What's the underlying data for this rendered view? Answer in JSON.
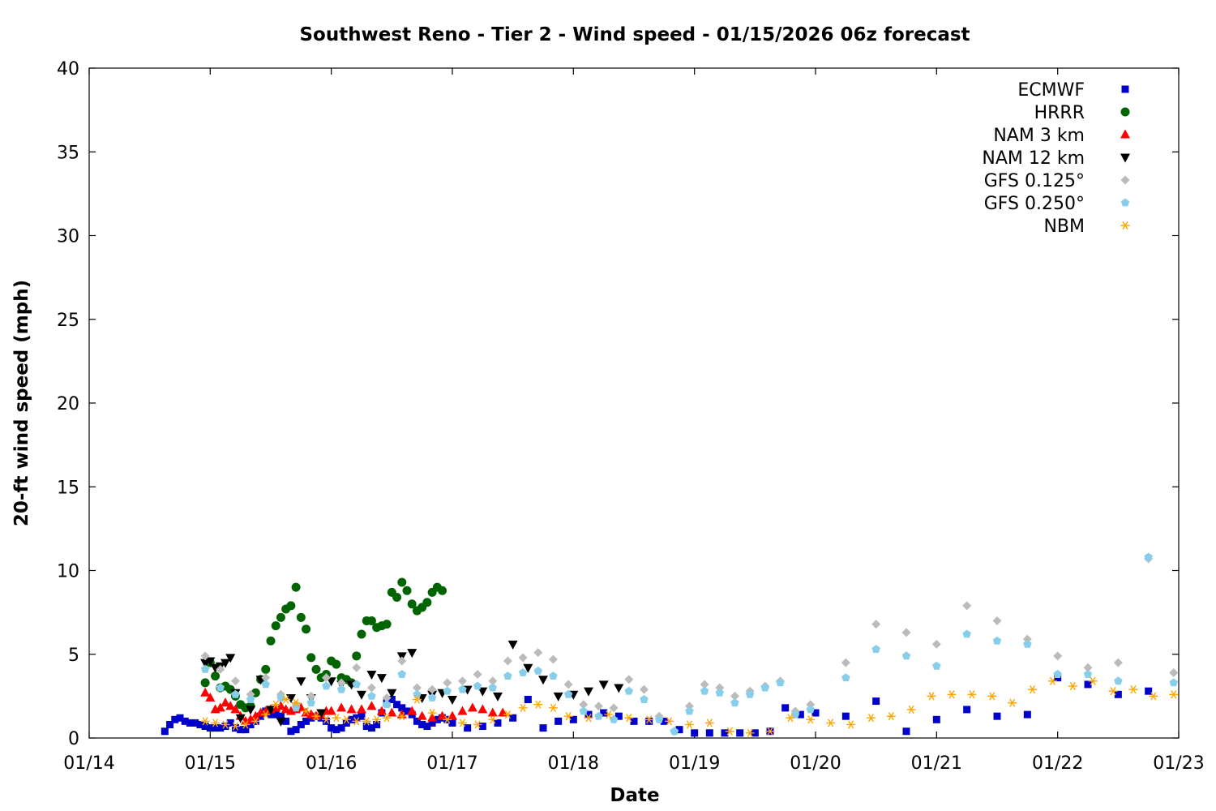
{
  "chart_data": {
    "type": "scatter",
    "title": "Southwest Reno - Tier 2 - Wind speed - 01/15/2026 06z forecast",
    "xlabel": "Date",
    "ylabel": "20-ft wind speed (mph)",
    "xlim": [
      "2026-01-14T00:00",
      "2026-01-23T00:00"
    ],
    "ylim": [
      0,
      40
    ],
    "x_ticks": [
      "01/14",
      "01/15",
      "01/16",
      "01/17",
      "01/18",
      "01/19",
      "01/20",
      "01/21",
      "01/22",
      "01/23"
    ],
    "y_ticks": [
      0,
      5,
      10,
      15,
      20,
      25,
      30,
      35,
      40
    ],
    "grid": false,
    "legend_position": "top-right",
    "series": [
      {
        "name": "ECMWF",
        "color": "#0000cc",
        "marker": "square",
        "x": [
          "2026-01-14T15:00",
          "2026-01-14T16:00",
          "2026-01-14T17:00",
          "2026-01-14T18:00",
          "2026-01-14T19:00",
          "2026-01-14T20:00",
          "2026-01-14T21:00",
          "2026-01-14T22:00",
          "2026-01-14T23:00",
          "2026-01-15T00:00",
          "2026-01-15T01:00",
          "2026-01-15T02:00",
          "2026-01-15T03:00",
          "2026-01-15T04:00",
          "2026-01-15T05:00",
          "2026-01-15T06:00",
          "2026-01-15T07:00",
          "2026-01-15T08:00",
          "2026-01-15T09:00",
          "2026-01-15T10:00",
          "2026-01-15T11:00",
          "2026-01-15T12:00",
          "2026-01-15T13:00",
          "2026-01-15T14:00",
          "2026-01-15T15:00",
          "2026-01-15T16:00",
          "2026-01-15T17:00",
          "2026-01-15T18:00",
          "2026-01-15T19:00",
          "2026-01-15T20:00",
          "2026-01-15T21:00",
          "2026-01-15T22:00",
          "2026-01-15T23:00",
          "2026-01-16T00:00",
          "2026-01-16T01:00",
          "2026-01-16T02:00",
          "2026-01-16T03:00",
          "2026-01-16T04:00",
          "2026-01-16T05:00",
          "2026-01-16T06:00",
          "2026-01-16T07:00",
          "2026-01-16T08:00",
          "2026-01-16T09:00",
          "2026-01-16T10:00",
          "2026-01-16T11:00",
          "2026-01-16T12:00",
          "2026-01-16T13:00",
          "2026-01-16T14:00",
          "2026-01-16T15:00",
          "2026-01-16T16:00",
          "2026-01-16T17:00",
          "2026-01-16T18:00",
          "2026-01-16T19:00",
          "2026-01-16T20:00",
          "2026-01-16T21:00",
          "2026-01-16T22:00",
          "2026-01-16T23:00",
          "2026-01-17T00:00",
          "2026-01-17T03:00",
          "2026-01-17T06:00",
          "2026-01-17T09:00",
          "2026-01-17T12:00",
          "2026-01-17T15:00",
          "2026-01-17T18:00",
          "2026-01-17T21:00",
          "2026-01-18T00:00",
          "2026-01-18T03:00",
          "2026-01-18T06:00",
          "2026-01-18T09:00",
          "2026-01-18T12:00",
          "2026-01-18T15:00",
          "2026-01-18T18:00",
          "2026-01-18T21:00",
          "2026-01-19T00:00",
          "2026-01-19T03:00",
          "2026-01-19T06:00",
          "2026-01-19T09:00",
          "2026-01-19T12:00",
          "2026-01-19T15:00",
          "2026-01-19T18:00",
          "2026-01-19T21:00",
          "2026-01-20T00:00",
          "2026-01-20T06:00",
          "2026-01-20T12:00",
          "2026-01-20T18:00",
          "2026-01-21T00:00",
          "2026-01-21T06:00",
          "2026-01-21T12:00",
          "2026-01-21T18:00",
          "2026-01-22T00:00",
          "2026-01-22T06:00",
          "2026-01-22T12:00",
          "2026-01-22T18:00"
        ],
        "y": [
          0.4,
          0.8,
          1.1,
          1.2,
          1.0,
          0.9,
          0.9,
          0.8,
          0.7,
          0.6,
          0.6,
          0.6,
          0.7,
          0.9,
          0.6,
          0.5,
          0.5,
          0.8,
          1.0,
          1.3,
          1.6,
          1.4,
          1.4,
          1.3,
          1.0,
          0.4,
          0.5,
          0.8,
          1.0,
          1.2,
          1.3,
          1.2,
          1.0,
          0.6,
          0.5,
          0.6,
          0.9,
          1.1,
          1.2,
          1.3,
          0.7,
          0.6,
          0.8,
          1.5,
          2.1,
          2.3,
          2.0,
          1.8,
          1.6,
          1.4,
          1.0,
          0.8,
          0.7,
          0.9,
          1.1,
          1.2,
          1.1,
          0.9,
          0.6,
          0.7,
          0.9,
          1.2,
          2.3,
          0.6,
          1.0,
          1.1,
          1.4,
          1.5,
          1.3,
          1.0,
          1.0,
          1.0,
          0.5,
          0.3,
          0.3,
          0.3,
          0.3,
          0.3,
          0.4,
          1.8,
          1.4,
          1.5,
          1.3,
          2.2,
          0.4,
          1.1,
          1.7,
          1.3,
          1.4,
          3.6,
          3.2,
          2.6,
          2.8
        ]
      },
      {
        "name": "HRRR",
        "color": "#006400",
        "marker": "circle",
        "x": [
          "2026-01-14T23:00",
          "2026-01-15T00:00",
          "2026-01-15T01:00",
          "2026-01-15T02:00",
          "2026-01-15T03:00",
          "2026-01-15T04:00",
          "2026-01-15T05:00",
          "2026-01-15T06:00",
          "2026-01-15T07:00",
          "2026-01-15T08:00",
          "2026-01-15T09:00",
          "2026-01-15T10:00",
          "2026-01-15T11:00",
          "2026-01-15T12:00",
          "2026-01-15T13:00",
          "2026-01-15T14:00",
          "2026-01-15T15:00",
          "2026-01-15T16:00",
          "2026-01-15T17:00",
          "2026-01-15T18:00",
          "2026-01-15T19:00",
          "2026-01-15T20:00",
          "2026-01-15T21:00",
          "2026-01-15T22:00",
          "2026-01-15T23:00",
          "2026-01-16T00:00",
          "2026-01-16T01:00",
          "2026-01-16T02:00",
          "2026-01-16T03:00",
          "2026-01-16T04:00",
          "2026-01-16T05:00",
          "2026-01-16T06:00",
          "2026-01-16T07:00",
          "2026-01-16T08:00",
          "2026-01-16T09:00",
          "2026-01-16T10:00",
          "2026-01-16T11:00",
          "2026-01-16T12:00",
          "2026-01-16T13:00",
          "2026-01-16T14:00",
          "2026-01-16T15:00",
          "2026-01-16T16:00",
          "2026-01-16T17:00",
          "2026-01-16T18:00",
          "2026-01-16T19:00",
          "2026-01-16T20:00",
          "2026-01-16T21:00",
          "2026-01-16T22:00"
        ],
        "y": [
          3.3,
          4.5,
          3.7,
          3.0,
          3.1,
          2.9,
          2.5,
          2.0,
          1.8,
          1.9,
          2.7,
          3.5,
          4.1,
          5.8,
          6.7,
          7.2,
          7.7,
          7.9,
          9.0,
          7.2,
          6.5,
          4.8,
          4.1,
          3.6,
          3.8,
          4.6,
          4.4,
          3.6,
          3.5,
          3.3,
          4.9,
          6.2,
          7.0,
          7.0,
          6.6,
          6.7,
          6.8,
          8.7,
          8.4,
          9.3,
          8.8,
          8.0,
          7.6,
          7.8,
          8.1,
          8.7,
          9.0,
          8.8
        ]
      },
      {
        "name": "NAM 3 km",
        "color": "#ff0000",
        "marker": "triangle-up",
        "x": [
          "2026-01-14T23:00",
          "2026-01-15T00:00",
          "2026-01-15T01:00",
          "2026-01-15T02:00",
          "2026-01-15T03:00",
          "2026-01-15T04:00",
          "2026-01-15T05:00",
          "2026-01-15T06:00",
          "2026-01-15T07:00",
          "2026-01-15T08:00",
          "2026-01-15T09:00",
          "2026-01-15T10:00",
          "2026-01-15T11:00",
          "2026-01-15T12:00",
          "2026-01-15T13:00",
          "2026-01-15T14:00",
          "2026-01-15T15:00",
          "2026-01-15T16:00",
          "2026-01-15T17:00",
          "2026-01-15T18:00",
          "2026-01-15T19:00",
          "2026-01-15T20:00",
          "2026-01-15T21:00",
          "2026-01-15T22:00",
          "2026-01-15T23:00",
          "2026-01-16T00:00",
          "2026-01-16T02:00",
          "2026-01-16T04:00",
          "2026-01-16T06:00",
          "2026-01-16T08:00",
          "2026-01-16T10:00",
          "2026-01-16T12:00",
          "2026-01-16T14:00",
          "2026-01-16T16:00",
          "2026-01-16T18:00",
          "2026-01-16T20:00",
          "2026-01-16T22:00",
          "2026-01-17T00:00",
          "2026-01-17T02:00",
          "2026-01-17T04:00",
          "2026-01-17T06:00",
          "2026-01-17T08:00",
          "2026-01-17T10:00"
        ],
        "y": [
          2.7,
          2.4,
          1.7,
          1.8,
          2.1,
          1.9,
          1.7,
          1.3,
          1.0,
          1.1,
          1.3,
          1.5,
          1.6,
          1.7,
          1.8,
          1.9,
          1.7,
          1.6,
          1.7,
          1.8,
          1.5,
          1.4,
          1.3,
          1.4,
          1.6,
          1.6,
          1.8,
          1.7,
          1.7,
          1.9,
          1.6,
          1.5,
          1.4,
          1.6,
          1.3,
          1.2,
          1.3,
          1.3,
          1.6,
          1.8,
          1.7,
          1.5,
          1.5
        ]
      },
      {
        "name": "NAM 12 km",
        "color": "#000000",
        "marker": "triangle-down",
        "x": [
          "2026-01-14T23:00",
          "2026-01-15T00:00",
          "2026-01-15T01:00",
          "2026-01-15T02:00",
          "2026-01-15T03:00",
          "2026-01-15T04:00",
          "2026-01-15T05:00",
          "2026-01-15T06:00",
          "2026-01-15T08:00",
          "2026-01-15T10:00",
          "2026-01-15T12:00",
          "2026-01-15T14:00",
          "2026-01-15T16:00",
          "2026-01-15T18:00",
          "2026-01-15T20:00",
          "2026-01-15T22:00",
          "2026-01-16T00:00",
          "2026-01-16T02:00",
          "2026-01-16T04:00",
          "2026-01-16T06:00",
          "2026-01-16T08:00",
          "2026-01-16T10:00",
          "2026-01-16T12:00",
          "2026-01-16T14:00",
          "2026-01-16T16:00",
          "2026-01-16T18:00",
          "2026-01-16T20:00",
          "2026-01-16T22:00",
          "2026-01-17T00:00",
          "2026-01-17T03:00",
          "2026-01-17T06:00",
          "2026-01-17T09:00",
          "2026-01-17T12:00",
          "2026-01-17T15:00",
          "2026-01-17T18:00",
          "2026-01-17T21:00",
          "2026-01-18T00:00",
          "2026-01-18T03:00",
          "2026-01-18T06:00",
          "2026-01-18T09:00"
        ],
        "y": [
          4.5,
          4.6,
          4.2,
          4.3,
          4.5,
          4.8,
          2.7,
          1.2,
          1.7,
          3.5,
          1.7,
          1.0,
          2.4,
          3.4,
          2.4,
          1.5,
          3.4,
          3.2,
          3.2,
          2.6,
          3.8,
          3.6,
          2.7,
          4.9,
          5.1,
          2.4,
          2.6,
          2.7,
          2.3,
          2.9,
          2.8,
          2.5,
          5.6,
          4.2,
          3.5,
          2.5,
          2.6,
          2.8,
          3.2,
          3.0
        ]
      },
      {
        "name": "GFS 0.125°",
        "color": "#bbbbbb",
        "marker": "diamond",
        "x": [
          "2026-01-14T23:00",
          "2026-01-15T02:00",
          "2026-01-15T05:00",
          "2026-01-15T08:00",
          "2026-01-15T11:00",
          "2026-01-15T14:00",
          "2026-01-15T17:00",
          "2026-01-15T20:00",
          "2026-01-15T23:00",
          "2026-01-16T02:00",
          "2026-01-16T05:00",
          "2026-01-16T08:00",
          "2026-01-16T11:00",
          "2026-01-16T14:00",
          "2026-01-16T17:00",
          "2026-01-16T20:00",
          "2026-01-16T23:00",
          "2026-01-17T02:00",
          "2026-01-17T05:00",
          "2026-01-17T08:00",
          "2026-01-17T11:00",
          "2026-01-17T14:00",
          "2026-01-17T17:00",
          "2026-01-17T20:00",
          "2026-01-17T23:00",
          "2026-01-18T02:00",
          "2026-01-18T05:00",
          "2026-01-18T08:00",
          "2026-01-18T11:00",
          "2026-01-18T14:00",
          "2026-01-18T17:00",
          "2026-01-18T20:00",
          "2026-01-18T23:00",
          "2026-01-19T02:00",
          "2026-01-19T05:00",
          "2026-01-19T08:00",
          "2026-01-19T11:00",
          "2026-01-19T14:00",
          "2026-01-19T17:00",
          "2026-01-19T20:00",
          "2026-01-19T23:00",
          "2026-01-20T06:00",
          "2026-01-20T12:00",
          "2026-01-20T18:00",
          "2026-01-21T00:00",
          "2026-01-21T06:00",
          "2026-01-21T12:00",
          "2026-01-21T18:00",
          "2026-01-22T00:00",
          "2026-01-22T06:00",
          "2026-01-22T12:00",
          "2026-01-22T18:00",
          "2026-01-22T23:00"
        ],
        "y": [
          4.9,
          4.1,
          3.4,
          2.6,
          3.6,
          2.6,
          2.0,
          2.5,
          3.6,
          3.3,
          4.2,
          3.0,
          2.4,
          4.6,
          3.0,
          2.9,
          3.3,
          3.4,
          3.8,
          3.4,
          4.6,
          4.8,
          5.1,
          4.7,
          3.2,
          2.0,
          1.9,
          1.8,
          3.5,
          2.9,
          1.3,
          0.4,
          1.9,
          3.2,
          3.0,
          2.5,
          2.8,
          3.1,
          3.4,
          1.6,
          2.0,
          4.5,
          6.8,
          6.3,
          5.6,
          7.9,
          7.0,
          5.9,
          4.9,
          4.2,
          4.5,
          10.7,
          3.9
        ]
      },
      {
        "name": "GFS 0.250°",
        "color": "#87ceeb",
        "marker": "pentagon",
        "x": [
          "2026-01-14T23:00",
          "2026-01-15T02:00",
          "2026-01-15T05:00",
          "2026-01-15T08:00",
          "2026-01-15T11:00",
          "2026-01-15T14:00",
          "2026-01-15T17:00",
          "2026-01-15T20:00",
          "2026-01-15T23:00",
          "2026-01-16T02:00",
          "2026-01-16T05:00",
          "2026-01-16T08:00",
          "2026-01-16T11:00",
          "2026-01-16T14:00",
          "2026-01-16T17:00",
          "2026-01-16T20:00",
          "2026-01-16T23:00",
          "2026-01-17T02:00",
          "2026-01-17T05:00",
          "2026-01-17T08:00",
          "2026-01-17T11:00",
          "2026-01-17T14:00",
          "2026-01-17T17:00",
          "2026-01-17T20:00",
          "2026-01-17T23:00",
          "2026-01-18T02:00",
          "2026-01-18T05:00",
          "2026-01-18T08:00",
          "2026-01-18T11:00",
          "2026-01-18T14:00",
          "2026-01-18T17:00",
          "2026-01-18T20:00",
          "2026-01-18T23:00",
          "2026-01-19T02:00",
          "2026-01-19T05:00",
          "2026-01-19T08:00",
          "2026-01-19T11:00",
          "2026-01-19T14:00",
          "2026-01-19T17:00",
          "2026-01-19T20:00",
          "2026-01-19T23:00",
          "2026-01-20T06:00",
          "2026-01-20T12:00",
          "2026-01-20T18:00",
          "2026-01-21T00:00",
          "2026-01-21T06:00",
          "2026-01-21T12:00",
          "2026-01-21T18:00",
          "2026-01-22T00:00",
          "2026-01-22T06:00",
          "2026-01-22T12:00",
          "2026-01-22T18:00",
          "2026-01-22T23:00"
        ],
        "y": [
          4.1,
          3.0,
          2.6,
          2.3,
          3.2,
          2.4,
          1.8,
          2.1,
          3.1,
          2.9,
          3.2,
          2.5,
          2.0,
          3.8,
          2.6,
          2.4,
          2.8,
          2.9,
          3.1,
          3.0,
          3.7,
          3.9,
          4.0,
          3.7,
          2.6,
          1.6,
          1.3,
          1.1,
          2.8,
          2.3,
          1.1,
          0.4,
          1.6,
          2.8,
          2.7,
          2.1,
          2.6,
          3.0,
          3.3,
          1.4,
          1.7,
          3.6,
          5.3,
          4.9,
          4.3,
          6.2,
          5.8,
          5.6,
          3.8,
          3.8,
          3.4,
          10.8,
          3.3
        ]
      },
      {
        "name": "NBM",
        "color": "#ffa500",
        "marker": "asterisk",
        "x": [
          "2026-01-14T23:00",
          "2026-01-15T01:00",
          "2026-01-15T03:00",
          "2026-01-15T05:00",
          "2026-01-15T07:00",
          "2026-01-15T09:00",
          "2026-01-15T11:00",
          "2026-01-15T13:00",
          "2026-01-15T15:00",
          "2026-01-15T17:00",
          "2026-01-15T19:00",
          "2026-01-15T21:00",
          "2026-01-15T23:00",
          "2026-01-16T01:00",
          "2026-01-16T03:00",
          "2026-01-16T05:00",
          "2026-01-16T07:00",
          "2026-01-16T09:00",
          "2026-01-16T11:00",
          "2026-01-16T14:00",
          "2026-01-16T17:00",
          "2026-01-16T20:00",
          "2026-01-16T23:00",
          "2026-01-17T02:00",
          "2026-01-17T05:00",
          "2026-01-17T08:00",
          "2026-01-17T11:00",
          "2026-01-17T14:00",
          "2026-01-17T17:00",
          "2026-01-17T20:00",
          "2026-01-17T23:00",
          "2026-01-18T03:00",
          "2026-01-18T07:00",
          "2026-01-18T11:00",
          "2026-01-18T15:00",
          "2026-01-18T19:00",
          "2026-01-18T23:00",
          "2026-01-19T03:00",
          "2026-01-19T07:00",
          "2026-01-19T11:00",
          "2026-01-19T15:00",
          "2026-01-19T19:00",
          "2026-01-19T23:00",
          "2026-01-20T03:00",
          "2026-01-20T07:00",
          "2026-01-20T11:00",
          "2026-01-20T15:00",
          "2026-01-20T19:00",
          "2026-01-20T23:00",
          "2026-01-21T03:00",
          "2026-01-21T07:00",
          "2026-01-21T11:00",
          "2026-01-21T15:00",
          "2026-01-21T19:00",
          "2026-01-21T23:00",
          "2026-01-22T03:00",
          "2026-01-22T07:00",
          "2026-01-22T11:00",
          "2026-01-22T15:00",
          "2026-01-22T19:00",
          "2026-01-22T23:00"
        ],
        "y": [
          1.0,
          0.9,
          0.8,
          0.7,
          0.8,
          1.0,
          1.4,
          2.0,
          2.3,
          2.1,
          1.6,
          1.3,
          1.1,
          1.2,
          1.1,
          1.0,
          1.0,
          1.1,
          1.2,
          1.3,
          2.3,
          1.5,
          1.1,
          0.9,
          0.8,
          1.1,
          1.4,
          1.8,
          2.0,
          1.8,
          1.3,
          1.2,
          1.4,
          1.2,
          1.1,
          1.0,
          0.8,
          0.9,
          0.4,
          0.3,
          0.4,
          1.2,
          1.1,
          0.9,
          0.8,
          1.2,
          1.3,
          1.7,
          2.5,
          2.6,
          2.6,
          2.5,
          2.1,
          2.9,
          3.4,
          3.1,
          3.4,
          2.8,
          2.9,
          2.5,
          2.6
        ]
      }
    ]
  }
}
